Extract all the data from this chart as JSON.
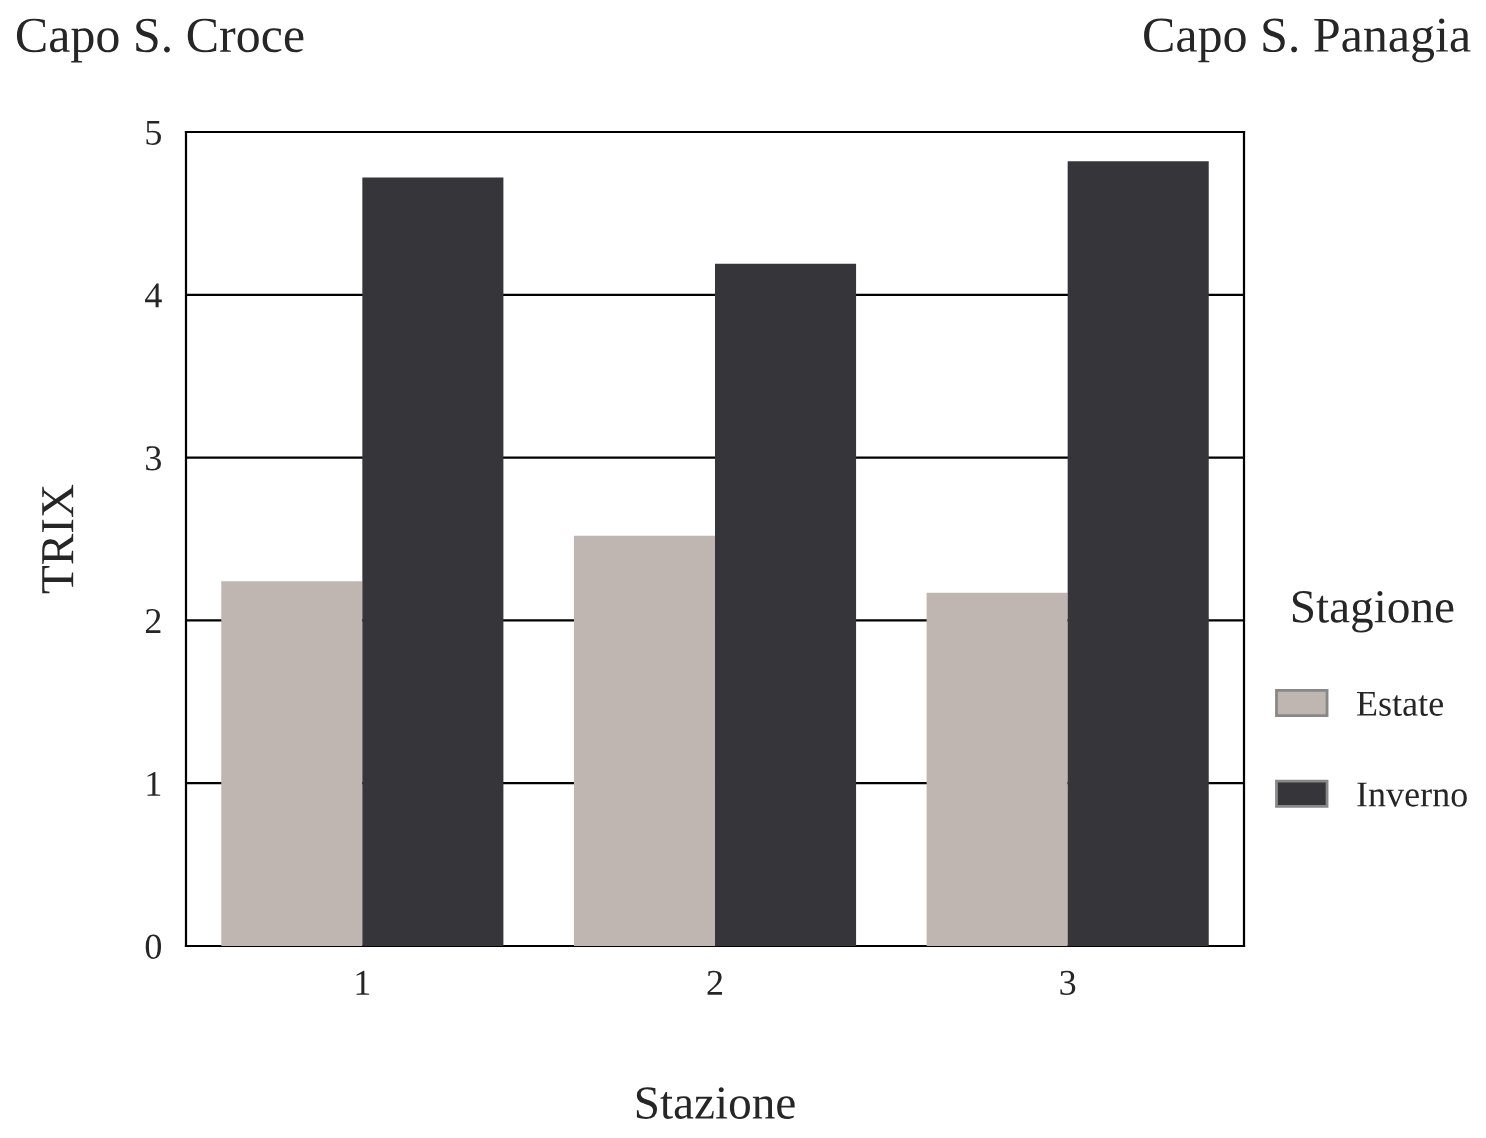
{
  "chart_data": {
    "type": "bar",
    "xlabel": "Stazione",
    "ylabel": "TRIX",
    "legend_title": "Stagione",
    "categories": [
      "1",
      "2",
      "3"
    ],
    "series": [
      {
        "name": "Estate",
        "color": "#c0b6b1",
        "values": [
          2.24,
          2.52,
          2.17
        ]
      },
      {
        "name": "Inverno",
        "color": "#36353a",
        "values": [
          4.72,
          4.19,
          4.82
        ]
      }
    ],
    "ylim": [
      0,
      5
    ],
    "yticks": [
      0,
      1,
      2,
      3,
      4,
      5
    ],
    "grid": "y",
    "legend": "right",
    "annotations": [
      "Capo S. Croce",
      "Capo S. Panagia"
    ]
  }
}
